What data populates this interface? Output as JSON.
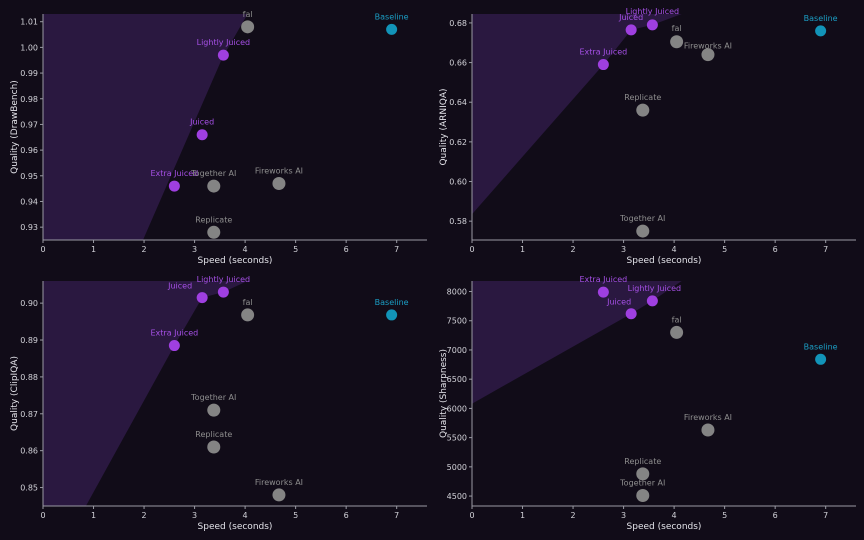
{
  "colors": {
    "background": "#110c18",
    "axis": "#9a9aa4",
    "frontier_fill": "#2a1840",
    "juiced": "#9f3fe0",
    "juiced_label": "#a650e6",
    "competitor": "#848484",
    "competitor_label": "#8e8e8e",
    "baseline": "#1294b8",
    "baseline_label": "#1b9fc5"
  },
  "chart_data": [
    {
      "type": "scatter",
      "xlabel": "Speed (seconds)",
      "ylabel": "Quality (DrawBench)",
      "xlim": [
        0,
        7.6
      ],
      "ylim": [
        0.925,
        1.013
      ],
      "xticks": [
        "0",
        "1",
        "2",
        "3",
        "4",
        "5",
        "6",
        "7"
      ],
      "yticks": [
        "0.93",
        "0.94",
        "0.95",
        "0.96",
        "0.97",
        "0.98",
        "0.99",
        "1.00",
        "1.01"
      ],
      "frontier": [
        [
          1.98,
          0.925
        ],
        [
          3.55,
          0.996
        ],
        [
          4.05,
          1.013
        ]
      ],
      "points": [
        {
          "label": "fal",
          "group": "competitor",
          "x": 4.05,
          "y": 1.008
        },
        {
          "label": "Baseline",
          "group": "baseline",
          "x": 6.9,
          "y": 1.007
        },
        {
          "label": "Lightly Juiced",
          "group": "juiced",
          "x": 3.57,
          "y": 0.997
        },
        {
          "label": "Juiced",
          "group": "juiced",
          "x": 3.15,
          "y": 0.966
        },
        {
          "label": "Extra Juiced",
          "group": "juiced",
          "x": 2.6,
          "y": 0.946
        },
        {
          "label": "Together AI",
          "group": "competitor",
          "x": 3.38,
          "y": 0.946
        },
        {
          "label": "Fireworks AI",
          "group": "competitor",
          "x": 4.67,
          "y": 0.947
        },
        {
          "label": "Replicate",
          "group": "competitor",
          "x": 3.38,
          "y": 0.928
        }
      ]
    },
    {
      "type": "scatter",
      "xlabel": "Speed (seconds)",
      "ylabel": "Quality (ARNIQA)",
      "xlim": [
        0,
        7.6
      ],
      "ylim": [
        0.5705,
        0.6845
      ],
      "xticks": [
        "0",
        "1",
        "2",
        "3",
        "4",
        "5",
        "6",
        "7"
      ],
      "yticks": [
        "0.58",
        "0.60",
        "0.62",
        "0.64",
        "0.66",
        "0.68"
      ],
      "frontier": [
        [
          0,
          0.5835
        ],
        [
          2.6,
          0.659
        ],
        [
          3.15,
          0.6765
        ],
        [
          3.57,
          0.679
        ],
        [
          4.15,
          0.6845
        ]
      ],
      "points": [
        {
          "label": "Lightly Juiced",
          "group": "juiced",
          "x": 3.57,
          "y": 0.679
        },
        {
          "label": "Juiced",
          "group": "juiced",
          "x": 3.15,
          "y": 0.6765
        },
        {
          "label": "fal",
          "group": "competitor",
          "x": 4.05,
          "y": 0.6705
        },
        {
          "label": "Fireworks AI",
          "group": "competitor",
          "x": 4.67,
          "y": 0.664
        },
        {
          "label": "Baseline",
          "group": "baseline",
          "x": 6.9,
          "y": 0.676
        },
        {
          "label": "Extra Juiced",
          "group": "juiced",
          "x": 2.6,
          "y": 0.659
        },
        {
          "label": "Replicate",
          "group": "competitor",
          "x": 3.38,
          "y": 0.636
        },
        {
          "label": "Together AI",
          "group": "competitor",
          "x": 3.38,
          "y": 0.575
        }
      ]
    },
    {
      "type": "scatter",
      "xlabel": "Speed (seconds)",
      "ylabel": "Quality (ClipIQA)",
      "xlim": [
        0,
        7.6
      ],
      "ylim": [
        0.845,
        0.906
      ],
      "xticks": [
        "0",
        "1",
        "2",
        "3",
        "4",
        "5",
        "6",
        "7"
      ],
      "yticks": [
        "0.85",
        "0.86",
        "0.87",
        "0.88",
        "0.89",
        "0.90"
      ],
      "frontier": [
        [
          0.85,
          0.845
        ],
        [
          2.6,
          0.8885
        ],
        [
          3.15,
          0.9015
        ],
        [
          3.57,
          0.903
        ],
        [
          4.05,
          0.906
        ]
      ],
      "points": [
        {
          "label": "Lightly Juiced",
          "group": "juiced",
          "x": 3.57,
          "y": 0.903
        },
        {
          "label": "Juiced",
          "group": "juiced",
          "x": 3.15,
          "y": 0.9015
        },
        {
          "label": "fal",
          "group": "competitor",
          "x": 4.05,
          "y": 0.8968
        },
        {
          "label": "Baseline",
          "group": "baseline",
          "x": 6.9,
          "y": 0.8968
        },
        {
          "label": "Extra Juiced",
          "group": "juiced",
          "x": 2.6,
          "y": 0.8885
        },
        {
          "label": "Together AI",
          "group": "competitor",
          "x": 3.38,
          "y": 0.871
        },
        {
          "label": "Replicate",
          "group": "competitor",
          "x": 3.38,
          "y": 0.861
        },
        {
          "label": "Fireworks AI",
          "group": "competitor",
          "x": 4.67,
          "y": 0.848
        }
      ]
    },
    {
      "type": "scatter",
      "xlabel": "Speed (seconds)",
      "ylabel": "Quality (Sharpness)",
      "xlim": [
        0,
        7.6
      ],
      "ylim": [
        4330,
        8180
      ],
      "xticks": [
        "0",
        "1",
        "2",
        "3",
        "4",
        "5",
        "6",
        "7"
      ],
      "yticks": [
        "4500",
        "5000",
        "5500",
        "6000",
        "6500",
        "7000",
        "7500",
        "8000"
      ],
      "frontier": [
        [
          0,
          6080
        ],
        [
          3.15,
          7620
        ],
        [
          3.57,
          7840
        ],
        [
          4.15,
          8180
        ]
      ],
      "points": [
        {
          "label": "Extra Juiced",
          "group": "juiced",
          "x": 2.6,
          "y": 7990
        },
        {
          "label": "Lightly Juiced",
          "group": "juiced",
          "x": 3.57,
          "y": 7840
        },
        {
          "label": "Juiced",
          "group": "juiced",
          "x": 3.15,
          "y": 7620
        },
        {
          "label": "fal",
          "group": "competitor",
          "x": 4.05,
          "y": 7300
        },
        {
          "label": "Baseline",
          "group": "baseline",
          "x": 6.9,
          "y": 6840
        },
        {
          "label": "Fireworks AI",
          "group": "competitor",
          "x": 4.67,
          "y": 5630
        },
        {
          "label": "Replicate",
          "group": "competitor",
          "x": 3.38,
          "y": 4880
        },
        {
          "label": "Together AI",
          "group": "competitor",
          "x": 3.38,
          "y": 4510
        }
      ]
    }
  ]
}
